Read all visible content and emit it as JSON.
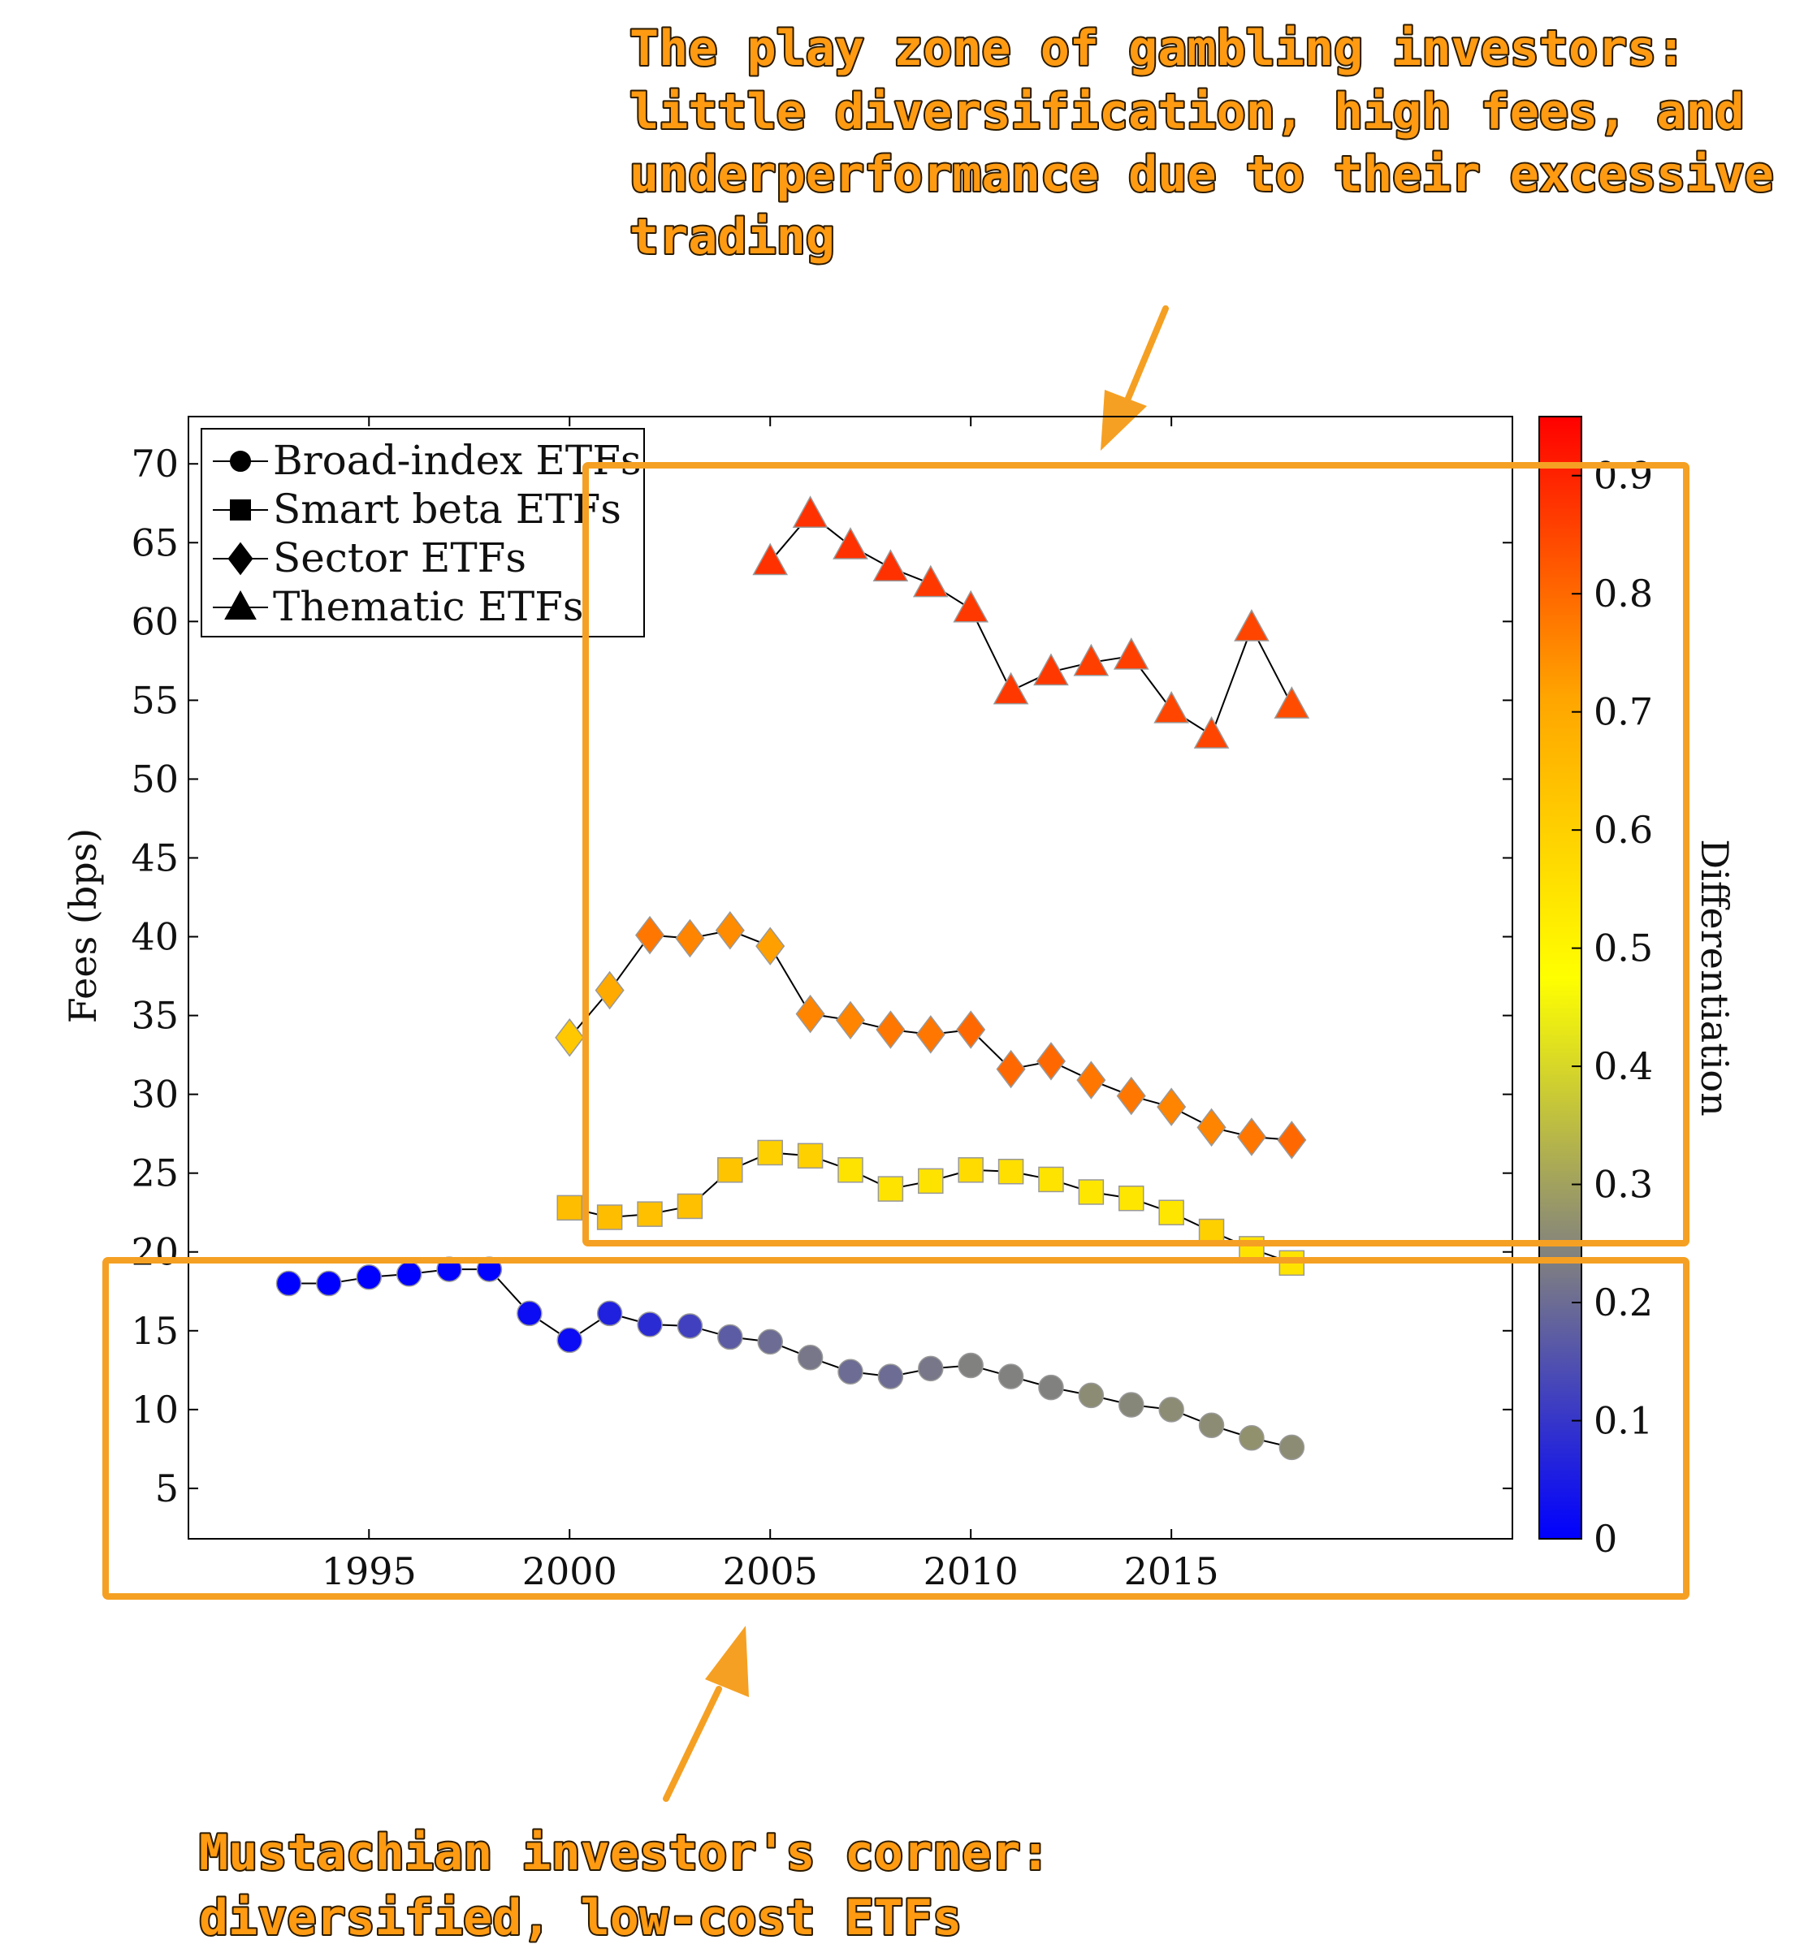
{
  "colors": {
    "highlight_box": "#f5a023",
    "annotation_text": "#ff9b12",
    "colormap": [
      "#0000ff",
      "#808080",
      "#ffff00",
      "#ffa500",
      "#ff0000"
    ]
  },
  "annotations": {
    "top_lines": [
      "The play zone of gambling investors:",
      "little diversification, high fees, and",
      "underperformance due to their excessive",
      "trading"
    ],
    "bottom_lines": [
      "Mustachian investor's corner:",
      "diversified, low-cost ETFs"
    ]
  },
  "chart_data": {
    "type": "scatter",
    "ylabel": "Fees (bps)",
    "xlabel": "",
    "xlim": [
      1990.5,
      2023.5
    ],
    "ylim": [
      1.8,
      73
    ],
    "x_ticks": [
      1995,
      2000,
      2005,
      2010,
      2015
    ],
    "y_ticks": [
      5,
      10,
      15,
      20,
      25,
      30,
      35,
      40,
      45,
      50,
      55,
      60,
      65,
      70
    ],
    "legend_position": "top-left",
    "colorbar": {
      "label": "Differentiation",
      "min": 0,
      "max": 0.95,
      "ticks": [
        0,
        0.1,
        0.2,
        0.3,
        0.4,
        0.5,
        0.6,
        0.7,
        0.8,
        0.9
      ]
    },
    "series": [
      {
        "name": "Broad-index ETFs",
        "marker": "circle",
        "x": [
          1993,
          1994,
          1995,
          1996,
          1997,
          1998,
          1999,
          2000,
          2001,
          2002,
          2003,
          2004,
          2005,
          2006,
          2007,
          2008,
          2009,
          2010,
          2011,
          2012,
          2013,
          2014,
          2015,
          2016,
          2017,
          2018
        ],
        "y": [
          18.0,
          18.0,
          18.4,
          18.6,
          18.9,
          18.9,
          16.1,
          14.4,
          16.1,
          15.4,
          15.3,
          14.6,
          14.3,
          13.3,
          12.4,
          12.1,
          12.6,
          12.8,
          12.1,
          11.4,
          10.9,
          10.3,
          10.0,
          9.0,
          8.2,
          7.6
        ],
        "c": [
          0.0,
          0.0,
          0.0,
          0.0,
          0.0,
          0.0,
          0.02,
          0.02,
          0.06,
          0.08,
          0.12,
          0.17,
          0.2,
          0.22,
          0.2,
          0.2,
          0.22,
          0.24,
          0.24,
          0.24,
          0.26,
          0.25,
          0.26,
          0.26,
          0.27,
          0.26
        ]
      },
      {
        "name": "Smart beta ETFs",
        "marker": "square",
        "x": [
          2000,
          2001,
          2002,
          2003,
          2004,
          2005,
          2006,
          2007,
          2008,
          2009,
          2010,
          2011,
          2012,
          2013,
          2014,
          2015,
          2016,
          2017,
          2018
        ],
        "y": [
          22.8,
          22.2,
          22.4,
          22.9,
          25.2,
          26.3,
          26.1,
          25.2,
          24.0,
          24.5,
          25.2,
          25.1,
          24.6,
          23.8,
          23.4,
          22.5,
          21.3,
          20.2,
          19.3
        ],
        "c": [
          0.65,
          0.65,
          0.64,
          0.64,
          0.63,
          0.6,
          0.6,
          0.55,
          0.55,
          0.55,
          0.57,
          0.56,
          0.55,
          0.54,
          0.54,
          0.54,
          0.6,
          0.55,
          0.55
        ]
      },
      {
        "name": "Sector ETFs",
        "marker": "diamond",
        "x": [
          2000,
          2001,
          2002,
          2003,
          2004,
          2005,
          2006,
          2007,
          2008,
          2009,
          2010,
          2011,
          2012,
          2013,
          2014,
          2015,
          2016,
          2017,
          2018
        ],
        "y": [
          33.6,
          36.6,
          40.1,
          39.9,
          40.4,
          39.4,
          35.1,
          34.7,
          34.1,
          33.8,
          34.1,
          31.6,
          32.1,
          30.9,
          29.9,
          29.2,
          27.9,
          27.3,
          27.1
        ],
        "c": [
          0.62,
          0.7,
          0.78,
          0.76,
          0.75,
          0.72,
          0.76,
          0.76,
          0.78,
          0.78,
          0.8,
          0.8,
          0.8,
          0.78,
          0.78,
          0.76,
          0.76,
          0.78,
          0.8
        ]
      },
      {
        "name": "Thematic ETFs",
        "marker": "triangle",
        "x": [
          2005,
          2006,
          2007,
          2008,
          2009,
          2010,
          2011,
          2012,
          2013,
          2014,
          2015,
          2016,
          2017,
          2018
        ],
        "y": [
          63.8,
          66.8,
          64.8,
          63.4,
          62.4,
          60.8,
          55.6,
          56.8,
          57.4,
          57.8,
          54.4,
          52.8,
          59.6,
          54.7
        ],
        "c": [
          0.88,
          0.88,
          0.88,
          0.88,
          0.87,
          0.87,
          0.87,
          0.87,
          0.86,
          0.86,
          0.85,
          0.85,
          0.85,
          0.84
        ]
      }
    ]
  }
}
